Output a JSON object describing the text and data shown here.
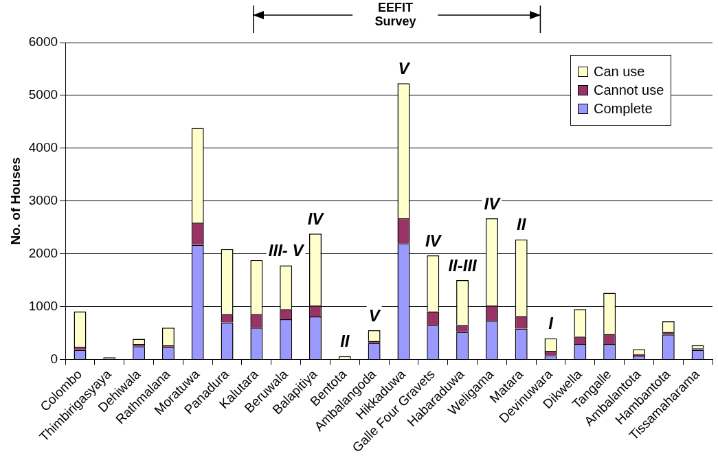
{
  "chart_data": {
    "type": "bar",
    "stacked": true,
    "ylabel": "No. of Houses",
    "categories": [
      "Colombo",
      "Thimbirigasyaya",
      "Dehiwala",
      "Rathmalana",
      "Moratuwa",
      "Panadura",
      "Kalutara",
      "Beruwala",
      "Balapitiya",
      "Bentota",
      "Ambalangoda",
      "Hikkaduwa",
      "Galle Four Gravets",
      "Habaraduwa",
      "Weligama",
      "Matara",
      "Devinuwara",
      "Dikwella",
      "Tangalle",
      "Ambalantota",
      "Hambantota",
      "Tissamaharama"
    ],
    "series": [
      {
        "name": "Complete",
        "color": "#9999ff",
        "values": [
          180,
          20,
          250,
          230,
          2170,
          700,
          600,
          760,
          810,
          0,
          310,
          2200,
          650,
          520,
          730,
          580,
          80,
          290,
          290,
          70,
          470,
          180
        ]
      },
      {
        "name": "Cannot use",
        "color": "#993366",
        "values": [
          60,
          20,
          40,
          40,
          420,
          160,
          260,
          190,
          210,
          0,
          40,
          470,
          260,
          130,
          290,
          240,
          80,
          140,
          190,
          30,
          50,
          30
        ]
      },
      {
        "name": "Can use",
        "color": "#ffffcc",
        "values": [
          670,
          null,
          100,
          330,
          1790,
          1230,
          1020,
          830,
          1360,
          60,
          200,
          2560,
          1060,
          850,
          1650,
          1450,
          240,
          520,
          780,
          90,
          200,
          60
        ]
      }
    ],
    "ylim": [
      0,
      6000
    ],
    "yticks": [
      0,
      1000,
      2000,
      3000,
      4000,
      5000,
      6000
    ],
    "grid": "y",
    "legend": "top right",
    "annotations": [
      "EEFIT Survey",
      {
        "text": "III- V",
        "x": "Beruwala",
        "y": 1780
      },
      {
        "text": "IV",
        "x": "Balapitiya",
        "y": 2380
      },
      {
        "text": "II",
        "x": "Bentota",
        "y": 60
      },
      {
        "text": "V",
        "x": "Ambalangoda",
        "y": 550
      },
      {
        "text": "V",
        "x": "Hikkaduwa",
        "y": 5230
      },
      {
        "text": "IV",
        "x": "Galle Four Gravets",
        "y": 1970
      },
      {
        "text": "II-III",
        "x": "Habaraduwa",
        "y": 1500
      },
      {
        "text": "IV",
        "x": "Weligama",
        "y": 2670
      },
      {
        "text": "II",
        "x": "Matara",
        "y": 2270
      },
      {
        "text": "I",
        "x": "Devinuwara",
        "y": 400
      }
    ]
  }
}
